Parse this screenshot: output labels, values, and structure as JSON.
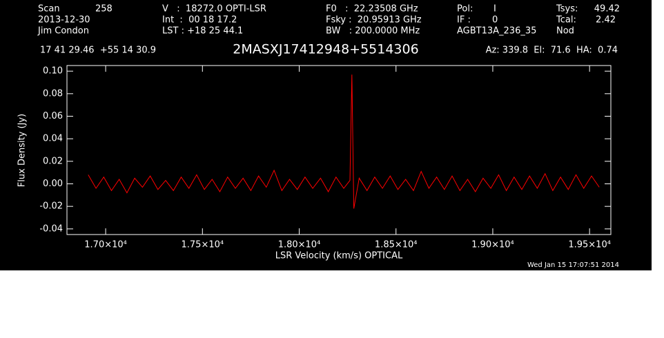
{
  "chart_data": {
    "type": "line",
    "title": "2MASXJ17412948+5514306",
    "x_label": "LSR Velocity (km/s) OPTICAL",
    "y_label": "Flux Density (Jy)",
    "annotations": [
      "Scan",
      "258",
      "2013-12-30",
      "Jim Condon",
      "V   :  18272.0 OPTI-LSR",
      "Int  :  00 18 17.2",
      "LST : +18 25 44.1",
      "F0   :  22.23508 GHz",
      "Fsky :  20.95913 GHz",
      "BW   : 200.0000 MHz",
      "Pol:",
      "I",
      "IF :",
      "0",
      "AGBT13A_236_35",
      "Tsys:",
      "49.42",
      "Tcal:",
      "2.42",
      "Nod",
      "17 41 29.46  +55 14 30.9",
      "Az: 339.8  El:  71.6  HA:  0.74",
      "Wed Jan 15 17:07:51 2014"
    ],
    "x": [
      16910,
      16950,
      16990,
      17030,
      17070,
      17110,
      17150,
      17190,
      17230,
      17270,
      17310,
      17350,
      17390,
      17430,
      17470,
      17510,
      17550,
      17590,
      17630,
      17670,
      17710,
      17750,
      17790,
      17830,
      17870,
      17910,
      17950,
      17990,
      18030,
      18070,
      18110,
      18150,
      18190,
      18230,
      18262,
      18272,
      18282,
      18310,
      18350,
      18390,
      18430,
      18470,
      18510,
      18550,
      18590,
      18630,
      18670,
      18710,
      18750,
      18790,
      18830,
      18870,
      18910,
      18950,
      18990,
      19030,
      19070,
      19110,
      19150,
      19190,
      19230,
      19270,
      19310,
      19350,
      19390,
      19430,
      19470,
      19510,
      19550
    ],
    "series": [
      {
        "color": "#ff0000",
        "values": [
          0.008,
          -0.004,
          0.006,
          -0.006,
          0.004,
          -0.008,
          0.005,
          -0.003,
          0.007,
          -0.005,
          0.003,
          -0.006,
          0.006,
          -0.004,
          0.008,
          -0.005,
          0.004,
          -0.007,
          0.006,
          -0.004,
          0.005,
          -0.006,
          0.007,
          -0.003,
          0.012,
          -0.006,
          0.004,
          -0.005,
          0.006,
          -0.004,
          0.005,
          -0.007,
          0.006,
          -0.004,
          0.003,
          0.097,
          -0.022,
          0.005,
          -0.006,
          0.006,
          -0.004,
          0.007,
          -0.005,
          0.004,
          -0.006,
          0.011,
          -0.004,
          0.006,
          -0.005,
          0.007,
          -0.006,
          0.004,
          -0.007,
          0.005,
          -0.004,
          0.008,
          -0.006,
          0.006,
          -0.005,
          0.007,
          -0.004,
          0.009,
          -0.006,
          0.006,
          -0.005,
          0.008,
          -0.004,
          0.007,
          -0.003
        ]
      }
    ],
    "xlim": [
      16800,
      19610
    ],
    "ylim": [
      -0.045,
      0.105
    ],
    "xticks": [
      {
        "value": 17000,
        "label": "1.70×10⁴"
      },
      {
        "value": 17500,
        "label": "1.75×10⁴"
      },
      {
        "value": 18000,
        "label": "1.80×10⁴"
      },
      {
        "value": 18500,
        "label": "1.85×10⁴"
      },
      {
        "value": 19000,
        "label": "1.90×10⁴"
      },
      {
        "value": 19500,
        "label": "1.95×10⁴"
      }
    ],
    "yticks": [
      {
        "value": -0.04,
        "label": "-0.04"
      },
      {
        "value": -0.02,
        "label": "-0.02"
      },
      {
        "value": 0,
        "label": "0.00"
      },
      {
        "value": 0.02,
        "label": "0.02"
      },
      {
        "value": 0.04,
        "label": "0.04"
      },
      {
        "value": 0.06,
        "label": "0.06"
      },
      {
        "value": 0.08,
        "label": "0.08"
      },
      {
        "value": 0.1,
        "label": "0.10"
      }
    ]
  }
}
